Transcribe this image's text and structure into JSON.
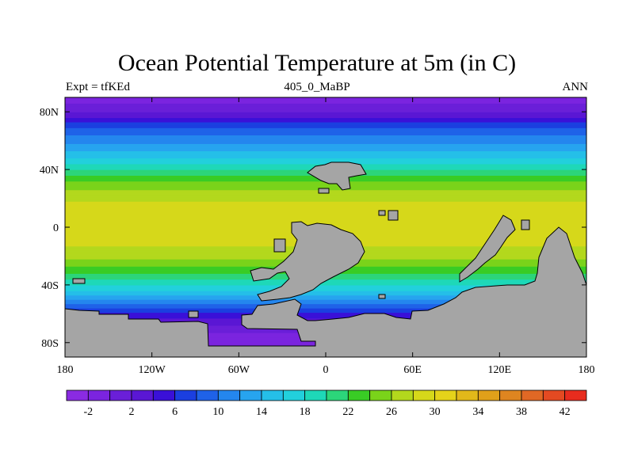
{
  "title": "Ocean Potential Temperature at 5m (in C)",
  "left_subtitle": "Expt = tfKEd",
  "center_subtitle": "405_0_MaBP",
  "right_subtitle": "ANN",
  "colors": {
    "land": "#a5a5a5",
    "background": "#ffffff"
  },
  "chart_data": {
    "type": "heatmap",
    "x_ticks": [
      "180",
      "120W",
      "60W",
      "0",
      "60E",
      "120E",
      "180"
    ],
    "x_tick_values": [
      -180,
      -120,
      -60,
      0,
      60,
      120,
      180
    ],
    "y_ticks": [
      "80N",
      "40N",
      "0",
      "40S",
      "80S"
    ],
    "y_tick_values": [
      80,
      40,
      0,
      -40,
      -80
    ],
    "xlim": [
      -180,
      180
    ],
    "ylim": [
      -90,
      90
    ],
    "colorbar": {
      "labels": [
        "-2",
        "2",
        "6",
        "10",
        "14",
        "18",
        "22",
        "26",
        "30",
        "34",
        "38",
        "42"
      ],
      "label_values": [
        -2,
        2,
        6,
        10,
        14,
        18,
        22,
        26,
        30,
        34,
        38,
        42
      ],
      "colors": [
        "#8a2be2",
        "#7b24df",
        "#6a1fd8",
        "#5a17d4",
        "#3a10d8",
        "#1b3fe0",
        "#1f62e8",
        "#2486ee",
        "#27a4ef",
        "#25bfe8",
        "#22d0dc",
        "#1ed8b8",
        "#2cd57a",
        "#39cc25",
        "#7ad31a",
        "#b3d81d",
        "#d6d81a",
        "#e5d31a",
        "#e2b81a",
        "#e0a01a",
        "#df8520",
        "#e06825",
        "#e44a22",
        "#e82c1e"
      ]
    },
    "zonal_profile": {
      "latitudes": [
        -90,
        -80,
        -70,
        -60,
        -50,
        -40,
        -30,
        -20,
        -10,
        0,
        10,
        20,
        30,
        40,
        50,
        60,
        70,
        80,
        90
      ],
      "temperatures": [
        -2,
        -1.5,
        1,
        6,
        13,
        19,
        24,
        28,
        30,
        31,
        31,
        29,
        26,
        21,
        16,
        12,
        8,
        2,
        -1
      ]
    }
  }
}
